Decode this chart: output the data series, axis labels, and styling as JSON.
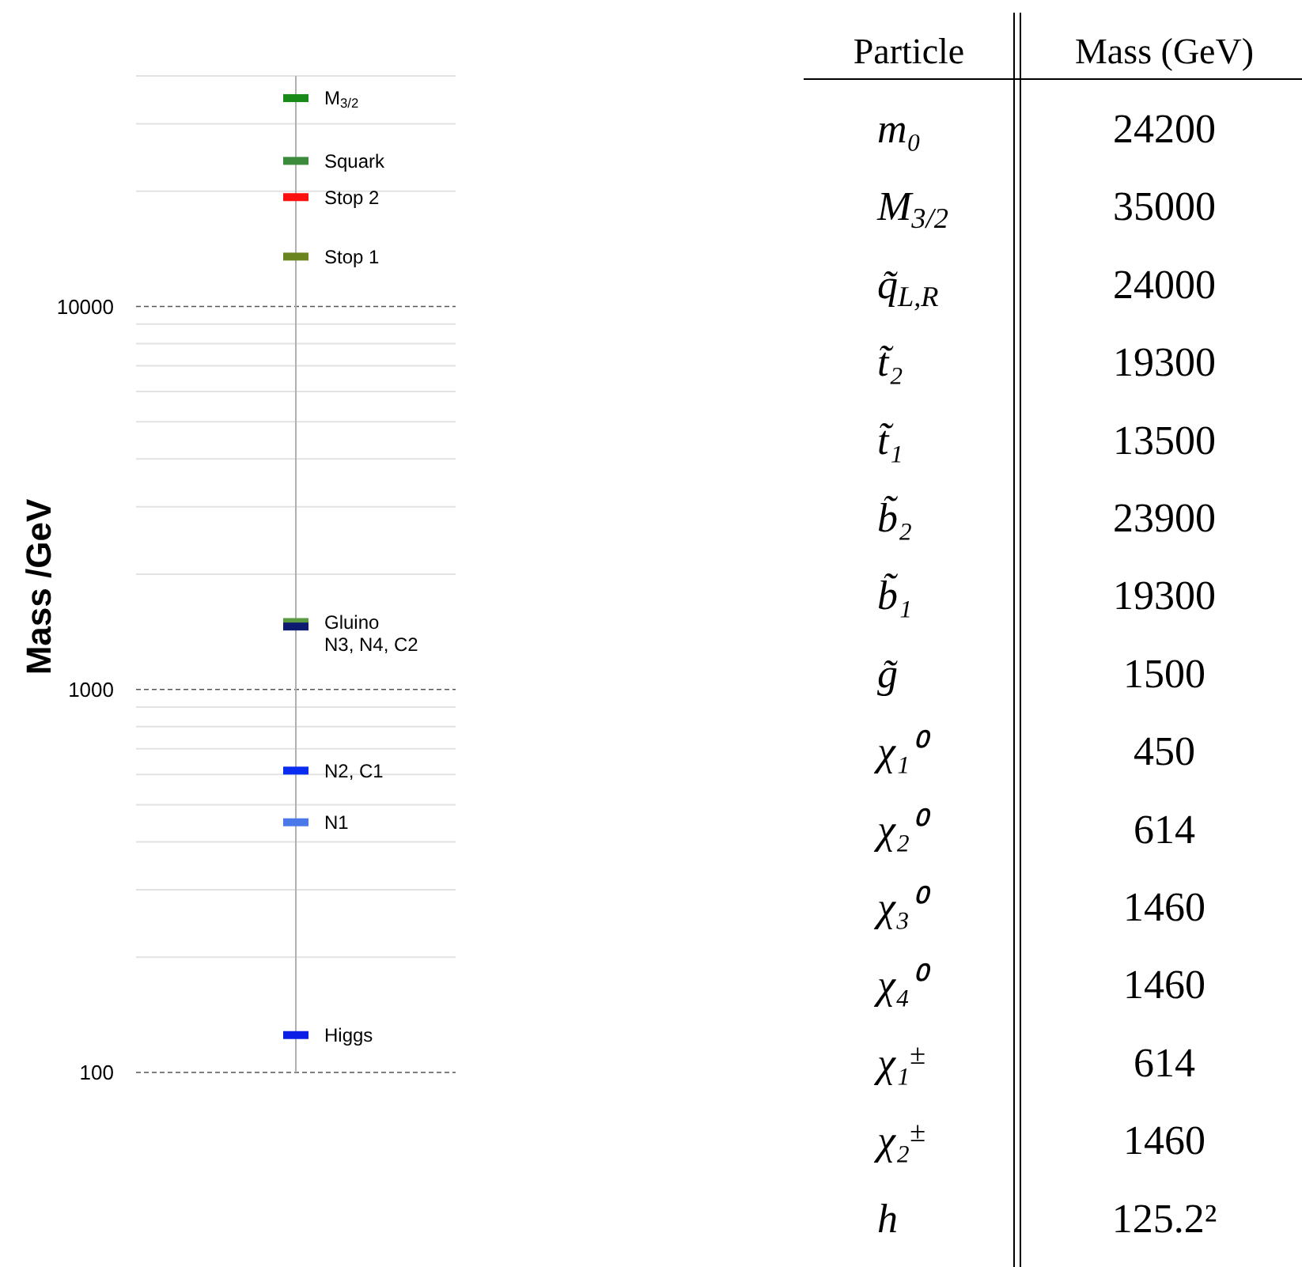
{
  "chart_data": [
    {
      "type": "scatter",
      "ylabel": "Mass /GeV",
      "log": "y",
      "grid": true,
      "categories": [
        null
      ],
      "ylim": [
        100,
        40000
      ],
      "yticks": [
        100,
        {
          "value": 200,
          "label": null
        },
        {
          "value": 300,
          "label": null
        },
        {
          "value": 400,
          "label": null
        },
        {
          "value": 500,
          "label": null
        },
        {
          "value": 600,
          "label": null
        },
        {
          "value": 700,
          "label": null
        },
        {
          "value": 800,
          "label": null
        },
        {
          "value": 900,
          "label": null
        },
        1000,
        {
          "value": 2000,
          "label": null
        },
        {
          "value": 3000,
          "label": null
        },
        {
          "value": 4000,
          "label": null
        },
        {
          "value": 5000,
          "label": null
        },
        {
          "value": 6000,
          "label": null
        },
        {
          "value": 7000,
          "label": null
        },
        {
          "value": 8000,
          "label": null
        },
        {
          "value": 9000,
          "label": null
        },
        10000,
        {
          "value": 20000,
          "label": null
        },
        {
          "value": 30000,
          "label": null
        },
        {
          "value": 40000,
          "label": null
        }
      ],
      "series": [
        {
          "name": "M$_{3/2}$",
          "color": "#178a17",
          "values": [
            35000
          ]
        },
        {
          "name": "Squark",
          "color": "#3c8a3c",
          "values": [
            24000
          ]
        },
        {
          "name": "Stop 2",
          "color": "#ff1010",
          "values": [
            19300
          ]
        },
        {
          "name": "Stop 1",
          "color": "#6a8420",
          "values": [
            13500
          ]
        },
        {
          "name": "Gluino",
          "color": "#5a9a40",
          "values": [
            1500
          ]
        },
        {
          "name": "N3, N4, C2",
          "color": "#0c1a70",
          "values": [
            1460
          ]
        },
        {
          "name": "N2, C1",
          "color": "#0a2cf0",
          "values": [
            614
          ]
        },
        {
          "name": "N1",
          "color": "#4a78e8",
          "values": [
            450
          ]
        },
        {
          "name": "Higgs",
          "color": "#0a1ee6",
          "values": [
            125.2
          ]
        }
      ]
    },
    {
      "type": "other",
      "annotations": [
        "Particle",
        "Mass (GeV)",
        "m₀",
        "24200",
        "M$_{3/2}$",
        "35000",
        "q̃$_{L,R}$",
        "24000",
        "t̃₂",
        "19300",
        "t̃₁",
        "13500",
        "b̃₂",
        "23900",
        "b̃₁",
        "19300",
        "g̃",
        "1500",
        "χ₁⁰",
        "450",
        "χ₂⁰",
        "614",
        "χ₃⁰",
        "1460",
        "χ₄⁰",
        "1460",
        "χ₁$^{±}$",
        "614",
        "χ₂$^{±}$",
        "1460",
        "h",
        "125.2²"
      ]
    }
  ]
}
